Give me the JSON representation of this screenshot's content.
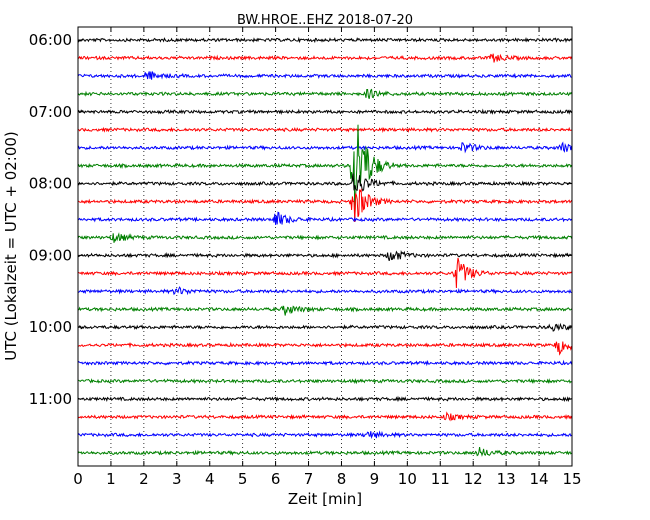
{
  "chart_data": {
    "type": "line",
    "title": "BW.HROE..EHZ 2018-07-20",
    "xlabel": "Zeit  [min]",
    "ylabel": "UTC (Lokalzeit = UTC + 02:00)",
    "xlim": [
      0,
      15
    ],
    "x_ticks": [
      "0",
      "1",
      "2",
      "3",
      "4",
      "5",
      "6",
      "7",
      "8",
      "9",
      "10",
      "11",
      "12",
      "13",
      "14",
      "15"
    ],
    "y_ticks": [
      "06:00",
      "07:00",
      "08:00",
      "09:00",
      "10:00",
      "11:00"
    ],
    "y_unit_minutes_per_trace": 15,
    "grid": "vertical dotted",
    "trace_colors": [
      "#000000",
      "#ff0000",
      "#0000ff",
      "#008000"
    ],
    "trace_start_times": [
      "06:00",
      "06:15",
      "06:30",
      "06:45",
      "07:00",
      "07:15",
      "07:30",
      "07:45",
      "08:00",
      "08:15",
      "08:30",
      "08:45",
      "09:00",
      "09:15",
      "09:30",
      "09:45",
      "10:00",
      "10:15",
      "10:30",
      "10:45",
      "11:00",
      "11:15",
      "11:30",
      "11:45"
    ],
    "events": [
      {
        "trace": 1,
        "x": 12.6,
        "amplitude": 0.25
      },
      {
        "trace": 2,
        "x": 2.1,
        "amplitude": 0.3
      },
      {
        "trace": 3,
        "x": 8.8,
        "amplitude": 0.3
      },
      {
        "trace": 6,
        "x": 11.7,
        "amplitude": 0.35
      },
      {
        "trace": 6,
        "x": 14.7,
        "amplitude": 0.3
      },
      {
        "trace": 7,
        "x": 8.4,
        "amplitude": 4.3
      },
      {
        "trace": 8,
        "x": 8.4,
        "amplitude": 1.0
      },
      {
        "trace": 9,
        "x": 8.4,
        "amplitude": 1.5
      },
      {
        "trace": 10,
        "x": 6.0,
        "amplitude": 0.55
      },
      {
        "trace": 11,
        "x": 1.1,
        "amplitude": 0.3
      },
      {
        "trace": 12,
        "x": 9.5,
        "amplitude": 0.45
      },
      {
        "trace": 13,
        "x": 11.5,
        "amplitude": 1.1
      },
      {
        "trace": 14,
        "x": 3.0,
        "amplitude": 0.25
      },
      {
        "trace": 15,
        "x": 6.3,
        "amplitude": 0.35
      },
      {
        "trace": 16,
        "x": 14.4,
        "amplitude": 0.25
      },
      {
        "trace": 17,
        "x": 14.6,
        "amplitude": 0.55
      },
      {
        "trace": 21,
        "x": 11.2,
        "amplitude": 0.2
      },
      {
        "trace": 22,
        "x": 8.8,
        "amplitude": 0.25
      },
      {
        "trace": 23,
        "x": 12.2,
        "amplitude": 0.3
      }
    ]
  }
}
